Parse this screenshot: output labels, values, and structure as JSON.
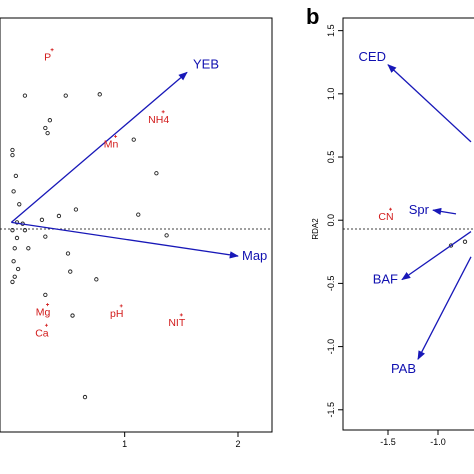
{
  "colors": {
    "vector": "#1818b8",
    "env": "#d21a1a",
    "points": "#222222",
    "axis": "#000000"
  },
  "chart_data": [
    {
      "type": "scatter",
      "panel_label": "",
      "xlabel": "",
      "ylabel": "",
      "xlim": [
        -0.1,
        2.3
      ],
      "ylim": [
        -1.62,
        1.58
      ],
      "x_ticks": [
        "1",
        "2"
      ],
      "y_ticks": [],
      "reference_line": "dashed horizontal at 0",
      "vectors": [
        {
          "name": "YEB",
          "x": 1.55,
          "y": 1.16
        },
        {
          "name": "Map",
          "x": 2.0,
          "y": -0.26
        }
      ],
      "env_labels": [
        {
          "name": "P",
          "x": 0.32,
          "y": 1.25
        },
        {
          "name": "NH4",
          "x": 1.3,
          "y": 0.77
        },
        {
          "name": "Mn",
          "x": 0.88,
          "y": 0.58
        },
        {
          "name": "Mg",
          "x": 0.28,
          "y": -0.72
        },
        {
          "name": "Ca",
          "x": 0.27,
          "y": -0.88
        },
        {
          "name": "pH",
          "x": 0.93,
          "y": -0.73
        },
        {
          "name": "NIT",
          "x": 1.46,
          "y": -0.8
        }
      ],
      "points": [
        [
          0.12,
          0.98
        ],
        [
          0.48,
          0.98
        ],
        [
          0.78,
          0.99
        ],
        [
          0.34,
          0.79
        ],
        [
          0.3,
          0.73
        ],
        [
          0.32,
          0.69
        ],
        [
          1.08,
          0.64
        ],
        [
          0.01,
          0.56
        ],
        [
          0.01,
          0.52
        ],
        [
          1.28,
          0.38
        ],
        [
          0.04,
          0.36
        ],
        [
          0.02,
          0.24
        ],
        [
          0.07,
          0.14
        ],
        [
          0.57,
          0.1
        ],
        [
          1.12,
          0.06
        ],
        [
          0.27,
          0.02
        ],
        [
          0.42,
          0.05
        ],
        [
          0.05,
          0.0
        ],
        [
          0.1,
          -0.01
        ],
        [
          0.01,
          -0.06
        ],
        [
          0.12,
          -0.06
        ],
        [
          0.05,
          -0.12
        ],
        [
          0.3,
          -0.11
        ],
        [
          0.03,
          -0.2
        ],
        [
          0.15,
          -0.2
        ],
        [
          0.5,
          -0.24
        ],
        [
          1.37,
          -0.1
        ],
        [
          0.02,
          -0.3
        ],
        [
          0.06,
          -0.36
        ],
        [
          0.52,
          -0.38
        ],
        [
          0.03,
          -0.42
        ],
        [
          0.75,
          -0.44
        ],
        [
          0.01,
          -0.46
        ],
        [
          0.3,
          -0.56
        ],
        [
          0.54,
          -0.72
        ],
        [
          0.65,
          -1.35
        ]
      ]
    },
    {
      "type": "scatter",
      "panel_label": "b",
      "xlabel": "",
      "ylabel": "RDA2",
      "xlim": [
        -1.95,
        -0.55
      ],
      "ylim": [
        -1.66,
        1.6
      ],
      "x_ticks": [
        "-1.5",
        "-1.0"
      ],
      "y_ticks": [
        "1.5",
        "1.0",
        "0.5",
        "0.0",
        "-0.5",
        "-1.0",
        "-1.5"
      ],
      "reference_line": "dashed horizontal at 0",
      "vectors": [
        {
          "name": "CED",
          "tail_x": -0.67,
          "tail_y": 0.62,
          "x": -1.5,
          "y": 1.23
        },
        {
          "name": "Spr",
          "tail_x": -0.82,
          "tail_y": 0.05,
          "x": -1.05,
          "y": 0.08
        },
        {
          "name": "BAF",
          "tail_x": -0.67,
          "tail_y": -0.09,
          "x": -1.36,
          "y": -0.47
        },
        {
          "name": "PAB",
          "tail_x": -0.67,
          "tail_y": -0.29,
          "x": -1.2,
          "y": -1.1
        }
      ],
      "env_labels": [
        {
          "name": "CN",
          "x": -1.52,
          "y": 0.0
        }
      ],
      "points": [
        [
          -0.87,
          -0.2
        ],
        [
          -0.73,
          -0.17
        ]
      ]
    }
  ]
}
